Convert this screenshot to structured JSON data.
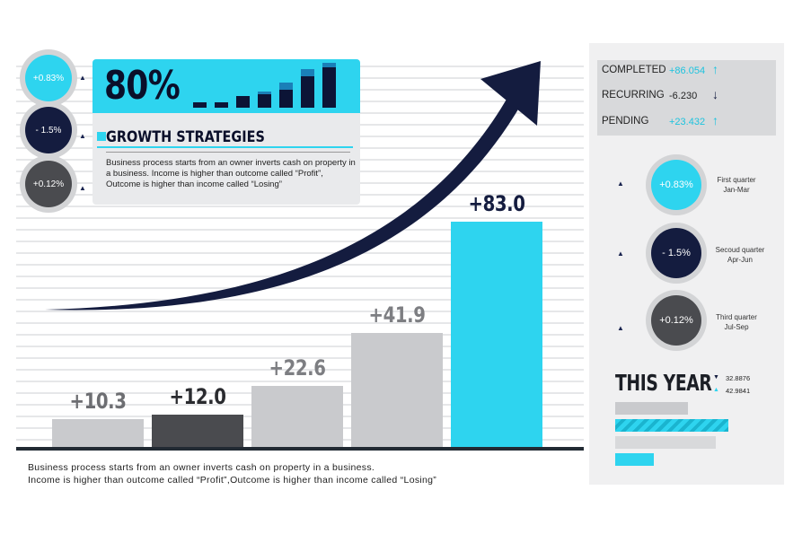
{
  "colors": {
    "cyan": "#2ed4ef",
    "dark": "#4a4b4f",
    "gray": "#c9cacd",
    "navy": "#141c3f"
  },
  "left_badges": [
    {
      "label": "+0.83%",
      "color": "#2ed4ef"
    },
    {
      "label": "- 1.5%",
      "color": "#141c3f"
    },
    {
      "label": "+0.12%",
      "color": "#4a4b4f"
    }
  ],
  "card": {
    "percent": "80%",
    "title": "GROWTH STRATEGIES",
    "desc": "Business process starts from an owner inverts cash on property in a business. Income is higher than outcome called “Profit”, Outcome is higher than income called “Losing”",
    "mini_bars": [
      {
        "light": 0.05,
        "dark": 0.12
      },
      {
        "light": 0.08,
        "dark": 0.12
      },
      {
        "light": 0.2,
        "dark": 0.25
      },
      {
        "light": 0.35,
        "dark": 0.3
      },
      {
        "light": 0.55,
        "dark": 0.4
      },
      {
        "light": 0.85,
        "dark": 0.7
      },
      {
        "light": 1.0,
        "dark": 0.9
      }
    ]
  },
  "chart_data": {
    "type": "bar",
    "categories": [
      "",
      "",
      "",
      "",
      ""
    ],
    "values": [
      10.3,
      12.0,
      22.6,
      41.9,
      83.0
    ],
    "labels": [
      "+10.3",
      "+12.0",
      "+22.6",
      "+41.9",
      "+83.0"
    ],
    "bar_colors": [
      "#c9cacd",
      "#4a4b4f",
      "#c9cacd",
      "#c9cacd",
      "#2ed4ef"
    ],
    "label_colors": [
      "#6d6e72",
      "#2a2b2f",
      "#7d7e82",
      "#7d7e82",
      "#141c3f"
    ],
    "ylim": [
      0,
      100
    ],
    "title": "",
    "xlabel": "",
    "ylabel": "",
    "grid": true,
    "trend_arrow": true
  },
  "bottom_desc": {
    "line1": "Business process starts from an owner inverts cash on property in a business.",
    "line2": "Income is higher than outcome called “Profit”,Outcome is higher than income called “Losing”"
  },
  "stats": [
    {
      "label": "COMPLETED",
      "value": "+86.054",
      "arrow": "↑",
      "value_color": "#1cc3de",
      "arrow_color": "#1cc3de"
    },
    {
      "label": "RECURRING",
      "value": "-6.230",
      "arrow": "↓",
      "value_color": "#222222",
      "arrow_color": "#141c3f"
    },
    {
      "label": "PENDING",
      "value": "+23.432",
      "arrow": "↑",
      "value_color": "#1cc3de",
      "arrow_color": "#1cc3de"
    }
  ],
  "quarters": [
    {
      "value": "+0.83%",
      "color": "#2ed4ef",
      "name": "First quarter",
      "range": "Jan-Mar"
    },
    {
      "value": "- 1.5%",
      "color": "#141c3f",
      "name": "Secoud quarter",
      "range": "Apr-Jun"
    },
    {
      "value": "+0.12%",
      "color": "#4a4b4f",
      "name": "Third quarter",
      "range": "Jul-Sep"
    }
  ],
  "this_year": {
    "title": "THIS YEAR",
    "val1": "32.8876",
    "val2": "42.9841",
    "bars": [
      {
        "fill": 0.58,
        "color": "#c9cacd",
        "striped": false
      },
      {
        "fill": 0.9,
        "color": "#2ed4ef",
        "striped": true
      },
      {
        "fill": 0.8,
        "color": "#d8d9db",
        "striped": false
      },
      {
        "fill": 0.31,
        "color": "#2ed4ef",
        "striped": false
      }
    ]
  }
}
